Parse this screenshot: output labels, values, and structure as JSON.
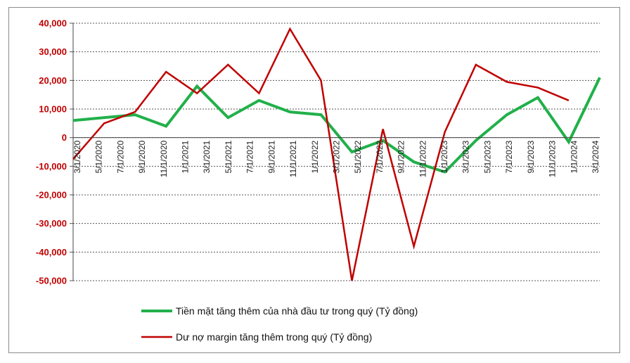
{
  "chart_data": {
    "type": "line",
    "categories": [
      "3/1/2020",
      "5/1/2020",
      "7/1/2020",
      "9/1/2020",
      "11/1/2020",
      "1/1/2021",
      "3/1/2021",
      "5/1/2021",
      "7/1/2021",
      "9/1/2021",
      "11/1/2021",
      "1/1/2022",
      "3/1/2022",
      "5/1/2022",
      "7/1/2022",
      "9/1/2022",
      "11/1/2022",
      "1/1/2023",
      "3/1/2023",
      "5/1/2023",
      "7/1/2023",
      "9/1/2023",
      "11/1/2023",
      "1/1/2024",
      "3/1/2024"
    ],
    "x_tick_labels": [
      "3/1/2020",
      "5/1/2020",
      "7/1/2020",
      "9/1/2020",
      "11/1/2020",
      "1/1/2021",
      "3/1/2021",
      "5/1/2021",
      "7/1/2021",
      "9/1/2021",
      "11/1/2021",
      "1/1/2022",
      "3/1/2022",
      "5/1/2022",
      "7/1/2022",
      "9/1/2022",
      "11/1/2022",
      "1/1/2023",
      "3/1/2023",
      "5/1/2023",
      "7/1/2023",
      "9/1/2023",
      "11/1/2023",
      "1/1/2024",
      "3/1/2024"
    ],
    "y_tick_labels": [
      "40,000",
      "30,000",
      "20,000",
      "10,000",
      "0",
      "-10,000",
      "-20,000",
      "-30,000",
      "-40,000",
      "-50,000"
    ],
    "y_tick_values": [
      40000,
      30000,
      20000,
      10000,
      0,
      -10000,
      -20000,
      -30000,
      -40000,
      -50000
    ],
    "ylim": [
      -50000,
      40000
    ],
    "grid": true,
    "legend_position": "bottom",
    "series": [
      {
        "name": "Tiền mặt tăng thêm của nhà đầu tư trong quý (Tỷ đồng)",
        "color": "#21b04a",
        "points": [
          [
            0,
            6000
          ],
          [
            2,
            8000
          ],
          [
            3,
            4000
          ],
          [
            4,
            18000
          ],
          [
            5,
            7000
          ],
          [
            6,
            13000
          ],
          [
            7,
            9000
          ],
          [
            8,
            8000
          ],
          [
            9,
            -5000
          ],
          [
            10,
            -1000
          ],
          [
            11,
            -8500
          ],
          [
            12,
            -12000
          ],
          [
            13,
            -1000
          ],
          [
            14,
            8000
          ],
          [
            15,
            14000
          ],
          [
            16,
            -1500
          ],
          [
            17,
            21000
          ]
        ]
      },
      {
        "name": "Dư nợ margin tăng thêm trong quý (Tỷ đồng)",
        "color": "#c00000",
        "points": [
          [
            0,
            -7500
          ],
          [
            1,
            5000
          ],
          [
            2,
            9000
          ],
          [
            3,
            23000
          ],
          [
            4,
            15500
          ],
          [
            5,
            25500
          ],
          [
            6,
            15500
          ],
          [
            7,
            38000
          ],
          [
            8,
            20000
          ],
          [
            9,
            -50000
          ],
          [
            10,
            3000
          ],
          [
            11,
            -38000
          ],
          [
            12,
            2000
          ],
          [
            13,
            25500
          ],
          [
            14,
            19500
          ],
          [
            15,
            17500
          ],
          [
            16,
            13000
          ]
        ]
      }
    ]
  }
}
